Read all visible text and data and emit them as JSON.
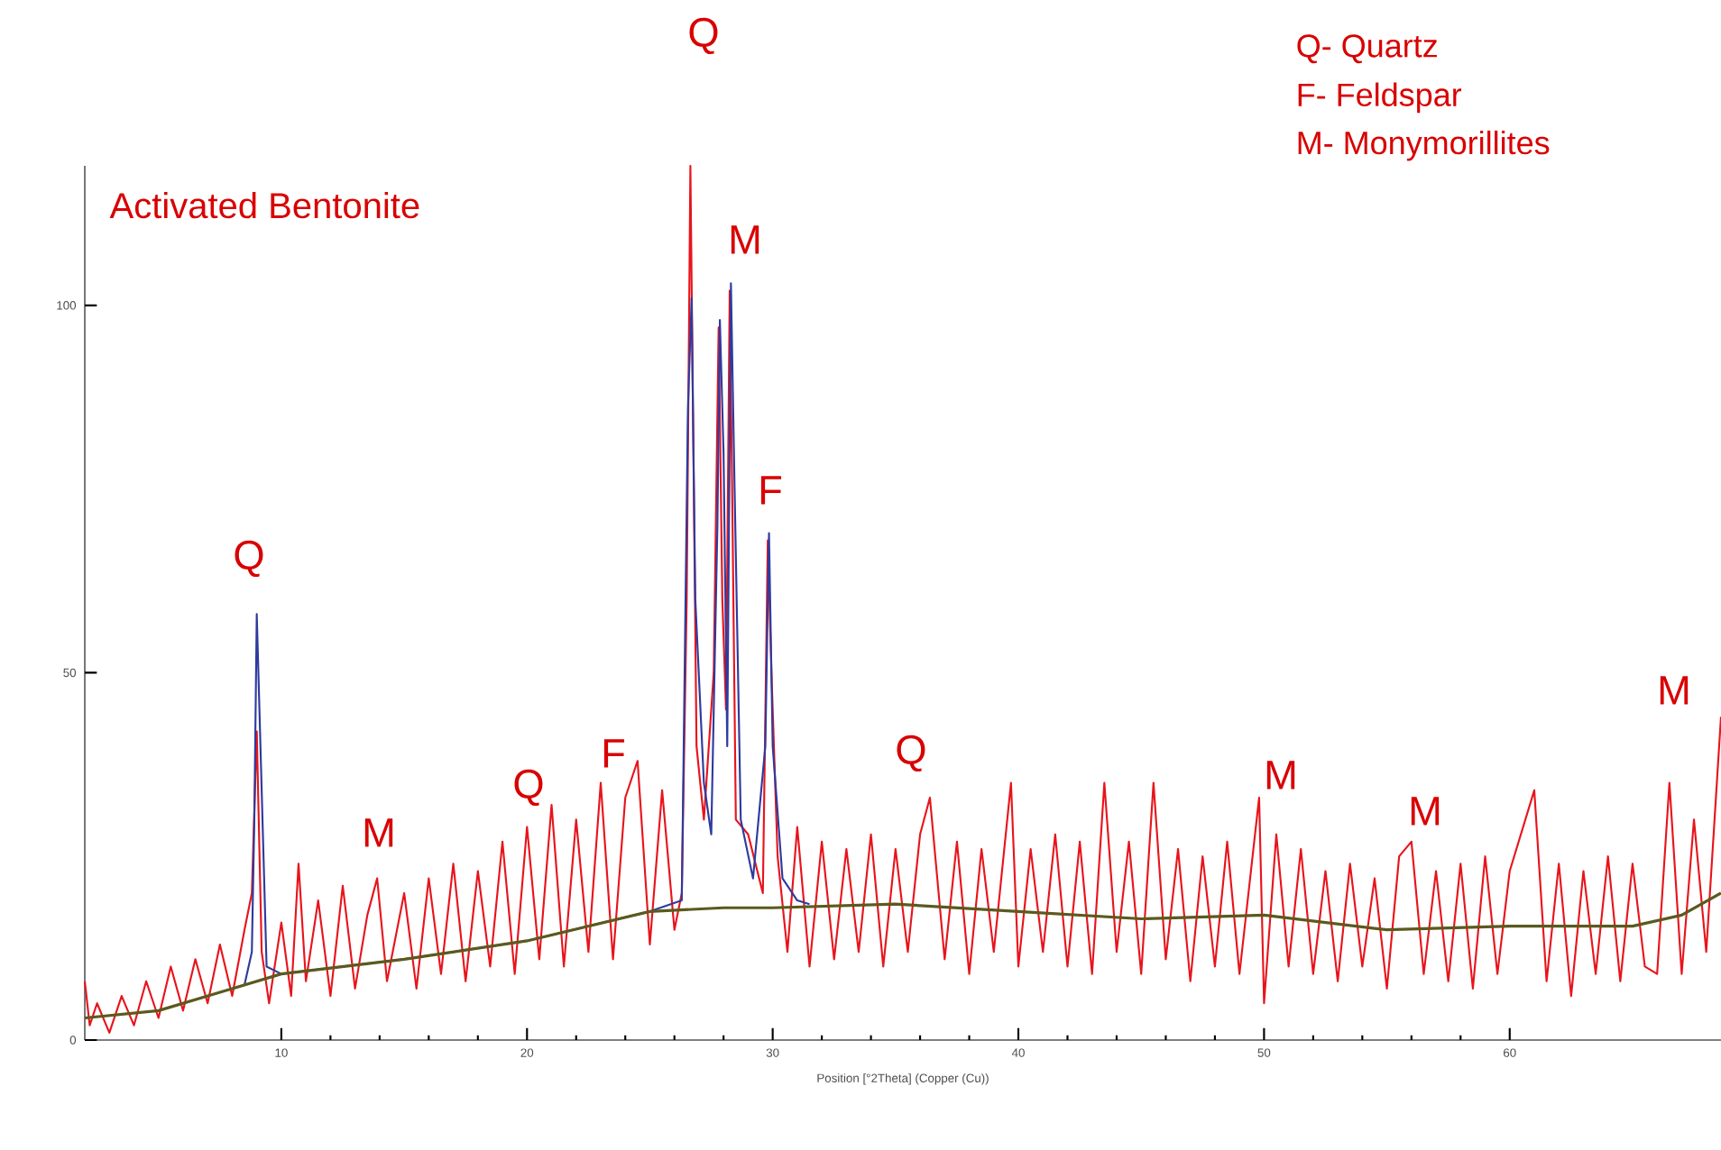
{
  "chart_data": {
    "type": "line",
    "title": "Activated Bentonite",
    "xlabel": "Position [°2Theta] (Copper (Cu))",
    "xlim": [
      2,
      68.6
    ],
    "ylim": [
      0,
      119
    ],
    "xticks": [
      10,
      20,
      30,
      40,
      50,
      60
    ],
    "yticks": [
      0,
      50,
      100
    ],
    "series": [
      {
        "color": "#e8141c",
        "x": [
          2,
          2.2,
          2.5,
          3,
          3.5,
          4,
          4.5,
          5,
          5.5,
          6,
          6.5,
          7,
          7.5,
          8,
          8.5,
          8.8,
          9.0,
          9.2,
          9.5,
          10,
          10.4,
          10.7,
          11,
          11.5,
          12,
          12.5,
          13,
          13.5,
          13.9,
          14.3,
          15,
          15.5,
          16,
          16.5,
          17,
          17.5,
          18,
          18.5,
          19,
          19.5,
          20,
          20.5,
          21,
          21.5,
          22,
          22.5,
          23,
          23.5,
          24,
          24.5,
          25,
          25.5,
          26,
          26.3,
          26.5,
          26.65,
          26.75,
          26.9,
          27.2,
          27.6,
          27.8,
          27.95,
          28.1,
          28.25,
          28.35,
          28.5,
          29,
          29.6,
          29.8,
          29.95,
          30.2,
          30.6,
          31,
          31.5,
          32,
          32.5,
          33,
          33.5,
          34,
          34.5,
          35,
          35.5,
          36,
          36.4,
          37,
          37.5,
          38,
          38.5,
          39,
          39.7,
          40,
          40.5,
          41,
          41.5,
          42,
          42.5,
          43,
          43.5,
          44,
          44.5,
          45,
          45.5,
          46,
          46.5,
          47,
          47.5,
          48,
          48.5,
          49,
          49.8,
          50,
          50.5,
          51,
          51.5,
          52,
          52.5,
          53,
          53.5,
          54,
          54.5,
          55,
          55.5,
          56,
          56.5,
          57,
          57.5,
          58,
          58.5,
          59,
          59.5,
          60,
          61,
          61.5,
          62,
          62.5,
          63,
          63.5,
          64,
          64.5,
          65,
          65.5,
          66,
          66.5,
          67,
          67.5,
          68,
          68.6
        ],
        "values": [
          8,
          2,
          5,
          1,
          6,
          2,
          8,
          3,
          10,
          4,
          11,
          5,
          13,
          6,
          15,
          20,
          42,
          12,
          5,
          16,
          6,
          24,
          8,
          19,
          6,
          21,
          7,
          17,
          22,
          8,
          20,
          7,
          22,
          9,
          24,
          8,
          23,
          10,
          27,
          9,
          29,
          11,
          32,
          10,
          30,
          12,
          35,
          11,
          33,
          38,
          13,
          34,
          15,
          20,
          60,
          119,
          null,
          40,
          30,
          50,
          97,
          60,
          45,
          102,
          75,
          30,
          28,
          20,
          68,
          50,
          25,
          12,
          29,
          10,
          27,
          11,
          26,
          12,
          28,
          10,
          26,
          12,
          28,
          33,
          11,
          27,
          9,
          26,
          12,
          35,
          10,
          26,
          12,
          28,
          10,
          27,
          9,
          35,
          12,
          27,
          9,
          35,
          11,
          26,
          8,
          25,
          10,
          27,
          9,
          33,
          5,
          28,
          10,
          26,
          9,
          23,
          8,
          24,
          10,
          22,
          7,
          25,
          27,
          9,
          23,
          8,
          24,
          7,
          25,
          9,
          23,
          34,
          8,
          24,
          6,
          23,
          9,
          25,
          8,
          24,
          10,
          9,
          35,
          9,
          30,
          12,
          44
        ]
      },
      {
        "color": "#2e3b9e",
        "x": [
          8,
          8.5,
          8.8,
          8.9,
          9.0,
          9.15,
          9.4,
          10,
          15,
          20,
          25,
          26.3,
          26.55,
          26.7,
          26.85,
          27.2,
          27.5,
          27.75,
          27.85,
          28.0,
          28.15,
          28.3,
          28.45,
          28.7,
          29.2,
          29.7,
          29.85,
          30.0,
          30.4,
          31,
          31.5
        ],
        "values": [
          7,
          7.5,
          12,
          30,
          58,
          40,
          10,
          9,
          11,
          13.5,
          17.5,
          19,
          86,
          101,
          60,
          35,
          28,
          70,
          98,
          80,
          40,
          103,
          75,
          30,
          22,
          40,
          69,
          40,
          22,
          19,
          18.5
        ]
      },
      {
        "color": "#5a5a1e",
        "x": [
          2,
          5,
          8,
          10,
          15,
          20,
          25,
          28,
          30,
          35,
          40,
          45,
          50,
          55,
          60,
          65,
          67,
          68.6
        ],
        "values": [
          3,
          4,
          7,
          9,
          11,
          13.5,
          17.5,
          18,
          18,
          18.5,
          17.5,
          16.5,
          17,
          15,
          15.5,
          15.5,
          17,
          20
        ]
      }
    ],
    "annotations": [
      "Q",
      "M",
      "Q",
      "F",
      "Q",
      "M",
      "F",
      "Q",
      "M",
      "M",
      "M",
      "Q- Quartz",
      "F- Feldspar",
      "M- Monymorillites"
    ]
  }
}
